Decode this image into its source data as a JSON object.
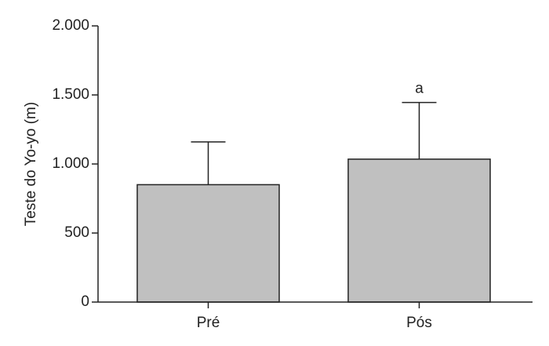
{
  "chart_data": {
    "type": "bar",
    "y_label": "Teste do Yo-yo (m)",
    "categories": [
      "Pré",
      "Pós"
    ],
    "values": [
      850,
      1035
    ],
    "errors": [
      310,
      410
    ],
    "color": "#c0c0c0",
    "annotation": "a",
    "ylim": [
      0,
      2000
    ],
    "yticks": [
      0,
      500,
      {
        "value": 1000,
        "label": "1.000"
      },
      {
        "value": 1500,
        "label": "1.500"
      },
      {
        "value": 2000,
        "label": "2.000"
      }
    ]
  }
}
